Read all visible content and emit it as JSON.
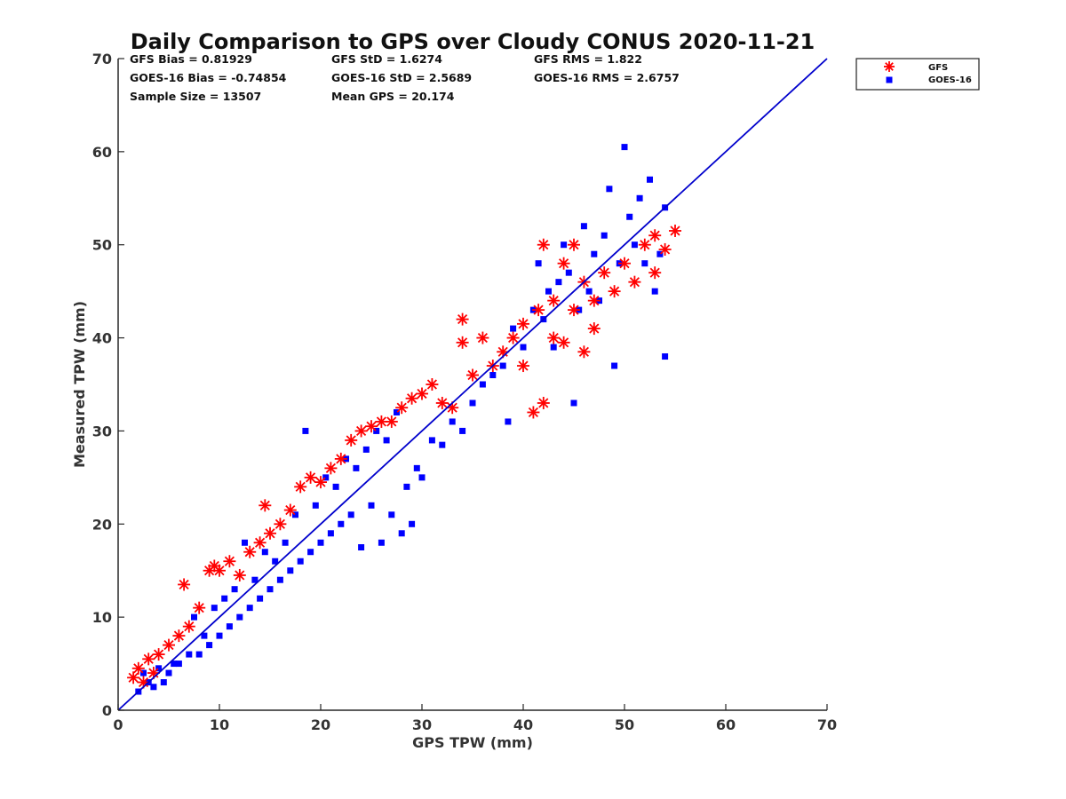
{
  "chart_data": {
    "type": "scatter",
    "title": "Daily Comparison to GPS over Cloudy CONUS 2020-11-21",
    "xlabel": "GPS TPW (mm)",
    "ylabel": "Measured TPW (mm)",
    "xlim": [
      0,
      70
    ],
    "ylim": [
      0,
      70
    ],
    "xticks": [
      "0",
      "10",
      "20",
      "30",
      "40",
      "50",
      "60",
      "70"
    ],
    "yticks": [
      "0",
      "10",
      "20",
      "30",
      "40",
      "50",
      "60",
      "70"
    ],
    "grid": false,
    "legend_position": "top-right outside",
    "stats": {
      "gfs_bias": "GFS Bias = 0.81929",
      "gfs_std": "GFS StD = 1.6274",
      "gfs_rms": "GFS RMS = 1.822",
      "goes_bias": "GOES-16 Bias = -0.74854",
      "goes_std": "GOES-16 StD = 2.5689",
      "goes_rms": "GOES-16 RMS = 2.6757",
      "sample_size": "Sample Size = 13507",
      "mean_gps": "Mean GPS = 20.174"
    },
    "one_to_one_line": {
      "x": [
        0,
        70
      ],
      "y": [
        0,
        70
      ]
    },
    "series": [
      {
        "name": "GFS",
        "marker": "asterisk",
        "color": "#ff0000",
        "points": [
          [
            1.5,
            3.5
          ],
          [
            2,
            4.5
          ],
          [
            2.5,
            3
          ],
          [
            3,
            5.5
          ],
          [
            3.5,
            4
          ],
          [
            4,
            6
          ],
          [
            5,
            7
          ],
          [
            6,
            8
          ],
          [
            6.5,
            13.5
          ],
          [
            7,
            9
          ],
          [
            8,
            11
          ],
          [
            9,
            15
          ],
          [
            9.5,
            15.5
          ],
          [
            10,
            15
          ],
          [
            11,
            16
          ],
          [
            12,
            14.5
          ],
          [
            13,
            17
          ],
          [
            14,
            18
          ],
          [
            14.5,
            22
          ],
          [
            15,
            19
          ],
          [
            16,
            20
          ],
          [
            17,
            21.5
          ],
          [
            18,
            24
          ],
          [
            19,
            25
          ],
          [
            20,
            24.5
          ],
          [
            21,
            26
          ],
          [
            22,
            27
          ],
          [
            23,
            29
          ],
          [
            24,
            30
          ],
          [
            25,
            30.5
          ],
          [
            26,
            31
          ],
          [
            27,
            31
          ],
          [
            28,
            32.5
          ],
          [
            29,
            33.5
          ],
          [
            30,
            34
          ],
          [
            31,
            35
          ],
          [
            32,
            33
          ],
          [
            33,
            32.5
          ],
          [
            34,
            42
          ],
          [
            34,
            39.5
          ],
          [
            35,
            36
          ],
          [
            36,
            40
          ],
          [
            37,
            37
          ],
          [
            38,
            38.5
          ],
          [
            39,
            40
          ],
          [
            40,
            41.5
          ],
          [
            40,
            37
          ],
          [
            41,
            32
          ],
          [
            41.5,
            43
          ],
          [
            42,
            50
          ],
          [
            42,
            33
          ],
          [
            43,
            44
          ],
          [
            43,
            40
          ],
          [
            44,
            48
          ],
          [
            44,
            39.5
          ],
          [
            45,
            50
          ],
          [
            45,
            43
          ],
          [
            46,
            46
          ],
          [
            46,
            38.5
          ],
          [
            47,
            44
          ],
          [
            47,
            41
          ],
          [
            48,
            47
          ],
          [
            49,
            45
          ],
          [
            50,
            48
          ],
          [
            51,
            46
          ],
          [
            52,
            50
          ],
          [
            53,
            51
          ],
          [
            53,
            47
          ],
          [
            54,
            49.5
          ],
          [
            55,
            51.5
          ]
        ]
      },
      {
        "name": "GOES-16",
        "marker": "square",
        "color": "#0000ff",
        "points": [
          [
            2,
            2
          ],
          [
            2.5,
            4
          ],
          [
            3,
            3
          ],
          [
            3.5,
            2.5
          ],
          [
            4,
            4.5
          ],
          [
            4.5,
            3
          ],
          [
            5,
            4
          ],
          [
            5.5,
            5
          ],
          [
            6,
            5
          ],
          [
            7,
            6
          ],
          [
            7.5,
            10
          ],
          [
            8,
            6
          ],
          [
            8.5,
            8
          ],
          [
            9,
            7
          ],
          [
            9.5,
            11
          ],
          [
            10,
            8
          ],
          [
            10.5,
            12
          ],
          [
            11,
            9
          ],
          [
            11.5,
            13
          ],
          [
            12,
            10
          ],
          [
            12.5,
            18
          ],
          [
            13,
            11
          ],
          [
            13.5,
            14
          ],
          [
            14,
            12
          ],
          [
            14.5,
            17
          ],
          [
            15,
            13
          ],
          [
            15.5,
            16
          ],
          [
            16,
            14
          ],
          [
            16.5,
            18
          ],
          [
            17,
            15
          ],
          [
            17.5,
            21
          ],
          [
            18,
            16
          ],
          [
            18.5,
            30
          ],
          [
            19,
            17
          ],
          [
            19.5,
            22
          ],
          [
            20,
            18
          ],
          [
            20.5,
            25
          ],
          [
            21,
            19
          ],
          [
            21.5,
            24
          ],
          [
            22,
            20
          ],
          [
            22.5,
            27
          ],
          [
            23,
            21
          ],
          [
            23.5,
            26
          ],
          [
            24,
            17.5
          ],
          [
            24.5,
            28
          ],
          [
            25,
            22
          ],
          [
            25.5,
            30
          ],
          [
            26,
            18
          ],
          [
            26.5,
            29
          ],
          [
            27,
            21
          ],
          [
            27.5,
            32
          ],
          [
            28,
            19
          ],
          [
            28.5,
            24
          ],
          [
            29,
            20
          ],
          [
            29.5,
            26
          ],
          [
            30,
            25
          ],
          [
            31,
            29
          ],
          [
            32,
            28.5
          ],
          [
            33,
            31
          ],
          [
            34,
            30
          ],
          [
            35,
            33
          ],
          [
            36,
            35
          ],
          [
            37,
            36
          ],
          [
            38,
            37
          ],
          [
            38.5,
            31
          ],
          [
            39,
            41
          ],
          [
            40,
            39
          ],
          [
            41,
            43
          ],
          [
            41.5,
            48
          ],
          [
            42,
            42
          ],
          [
            42.5,
            45
          ],
          [
            43,
            39
          ],
          [
            43.5,
            46
          ],
          [
            44,
            50
          ],
          [
            44.5,
            47
          ],
          [
            45,
            33
          ],
          [
            45.5,
            43
          ],
          [
            46,
            52
          ],
          [
            46.5,
            45
          ],
          [
            47,
            49
          ],
          [
            47.5,
            44
          ],
          [
            48,
            51
          ],
          [
            48.5,
            56
          ],
          [
            49,
            37
          ],
          [
            49.5,
            48
          ],
          [
            50,
            60.5
          ],
          [
            50.5,
            53
          ],
          [
            51,
            50
          ],
          [
            51.5,
            55
          ],
          [
            52,
            48
          ],
          [
            52.5,
            57
          ],
          [
            53,
            45
          ],
          [
            53.5,
            49
          ],
          [
            54,
            54
          ],
          [
            54,
            38
          ]
        ]
      }
    ]
  },
  "legend": {
    "items": [
      {
        "label": "GFS",
        "color": "#ff0000",
        "marker": "asterisk"
      },
      {
        "label": "GOES-16",
        "color": "#0000ff",
        "marker": "square"
      }
    ]
  },
  "colors": {
    "gfs": "#ff0000",
    "goes": "#0000ff",
    "line": "#0000cc",
    "axis": "#262626"
  }
}
